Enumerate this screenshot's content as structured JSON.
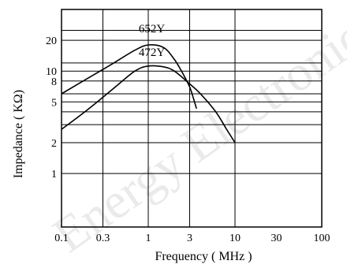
{
  "watermark": "Energy Electronics",
  "chart_data": {
    "type": "line",
    "title": "",
    "xlabel": "Frequency ( MHz )",
    "ylabel": "Impedance ( KΩ)",
    "x_scale": "log",
    "xlim": [
      0.1,
      100
    ],
    "y_scale": "log",
    "ylim": [
      0.3,
      40
    ],
    "grid": "horizontal",
    "x_ticks": [
      {
        "value": 0.1,
        "label": "0.1"
      },
      {
        "value": 0.3,
        "label": "0.3"
      },
      {
        "value": 1,
        "label": "1"
      },
      {
        "value": 3,
        "label": "3"
      },
      {
        "value": 10,
        "label": "10"
      },
      {
        "value": 30,
        "label": "30"
      },
      {
        "value": 100,
        "label": "100"
      }
    ],
    "y_ticks": [
      {
        "value": 1,
        "label": "1"
      },
      {
        "value": 2,
        "label": "2"
      },
      {
        "value": 5,
        "label": "5"
      },
      {
        "value": 8,
        "label": "8"
      },
      {
        "value": 10,
        "label": "10"
      },
      {
        "value": 20,
        "label": "20"
      }
    ],
    "h_gridlines": [
      1,
      2,
      3,
      4,
      5,
      6,
      8,
      10,
      12,
      20,
      25,
      40
    ],
    "v_gridlines": [
      0.3,
      1,
      3,
      10
    ],
    "series": [
      {
        "name": "652Y",
        "label_at": [
          1.1,
          24
        ],
        "points": [
          [
            0.1,
            6.0
          ],
          [
            0.2,
            8.5
          ],
          [
            0.4,
            12
          ],
          [
            0.7,
            16
          ],
          [
            1.0,
            18
          ],
          [
            1.5,
            17
          ],
          [
            2.0,
            13
          ],
          [
            2.5,
            9.5
          ],
          [
            3.0,
            7.0
          ],
          [
            3.3,
            5.5
          ],
          [
            3.6,
            4.3
          ]
        ]
      },
      {
        "name": "472Y",
        "label_at": [
          1.1,
          14
        ],
        "points": [
          [
            0.1,
            2.7
          ],
          [
            0.2,
            4.2
          ],
          [
            0.4,
            6.8
          ],
          [
            0.7,
            10
          ],
          [
            1.0,
            11.2
          ],
          [
            1.5,
            11
          ],
          [
            2.0,
            10
          ],
          [
            3.0,
            7.5
          ],
          [
            4.0,
            6.0
          ],
          [
            6.0,
            4.0
          ],
          [
            8.0,
            2.7
          ],
          [
            10.0,
            2.0
          ]
        ]
      }
    ]
  }
}
